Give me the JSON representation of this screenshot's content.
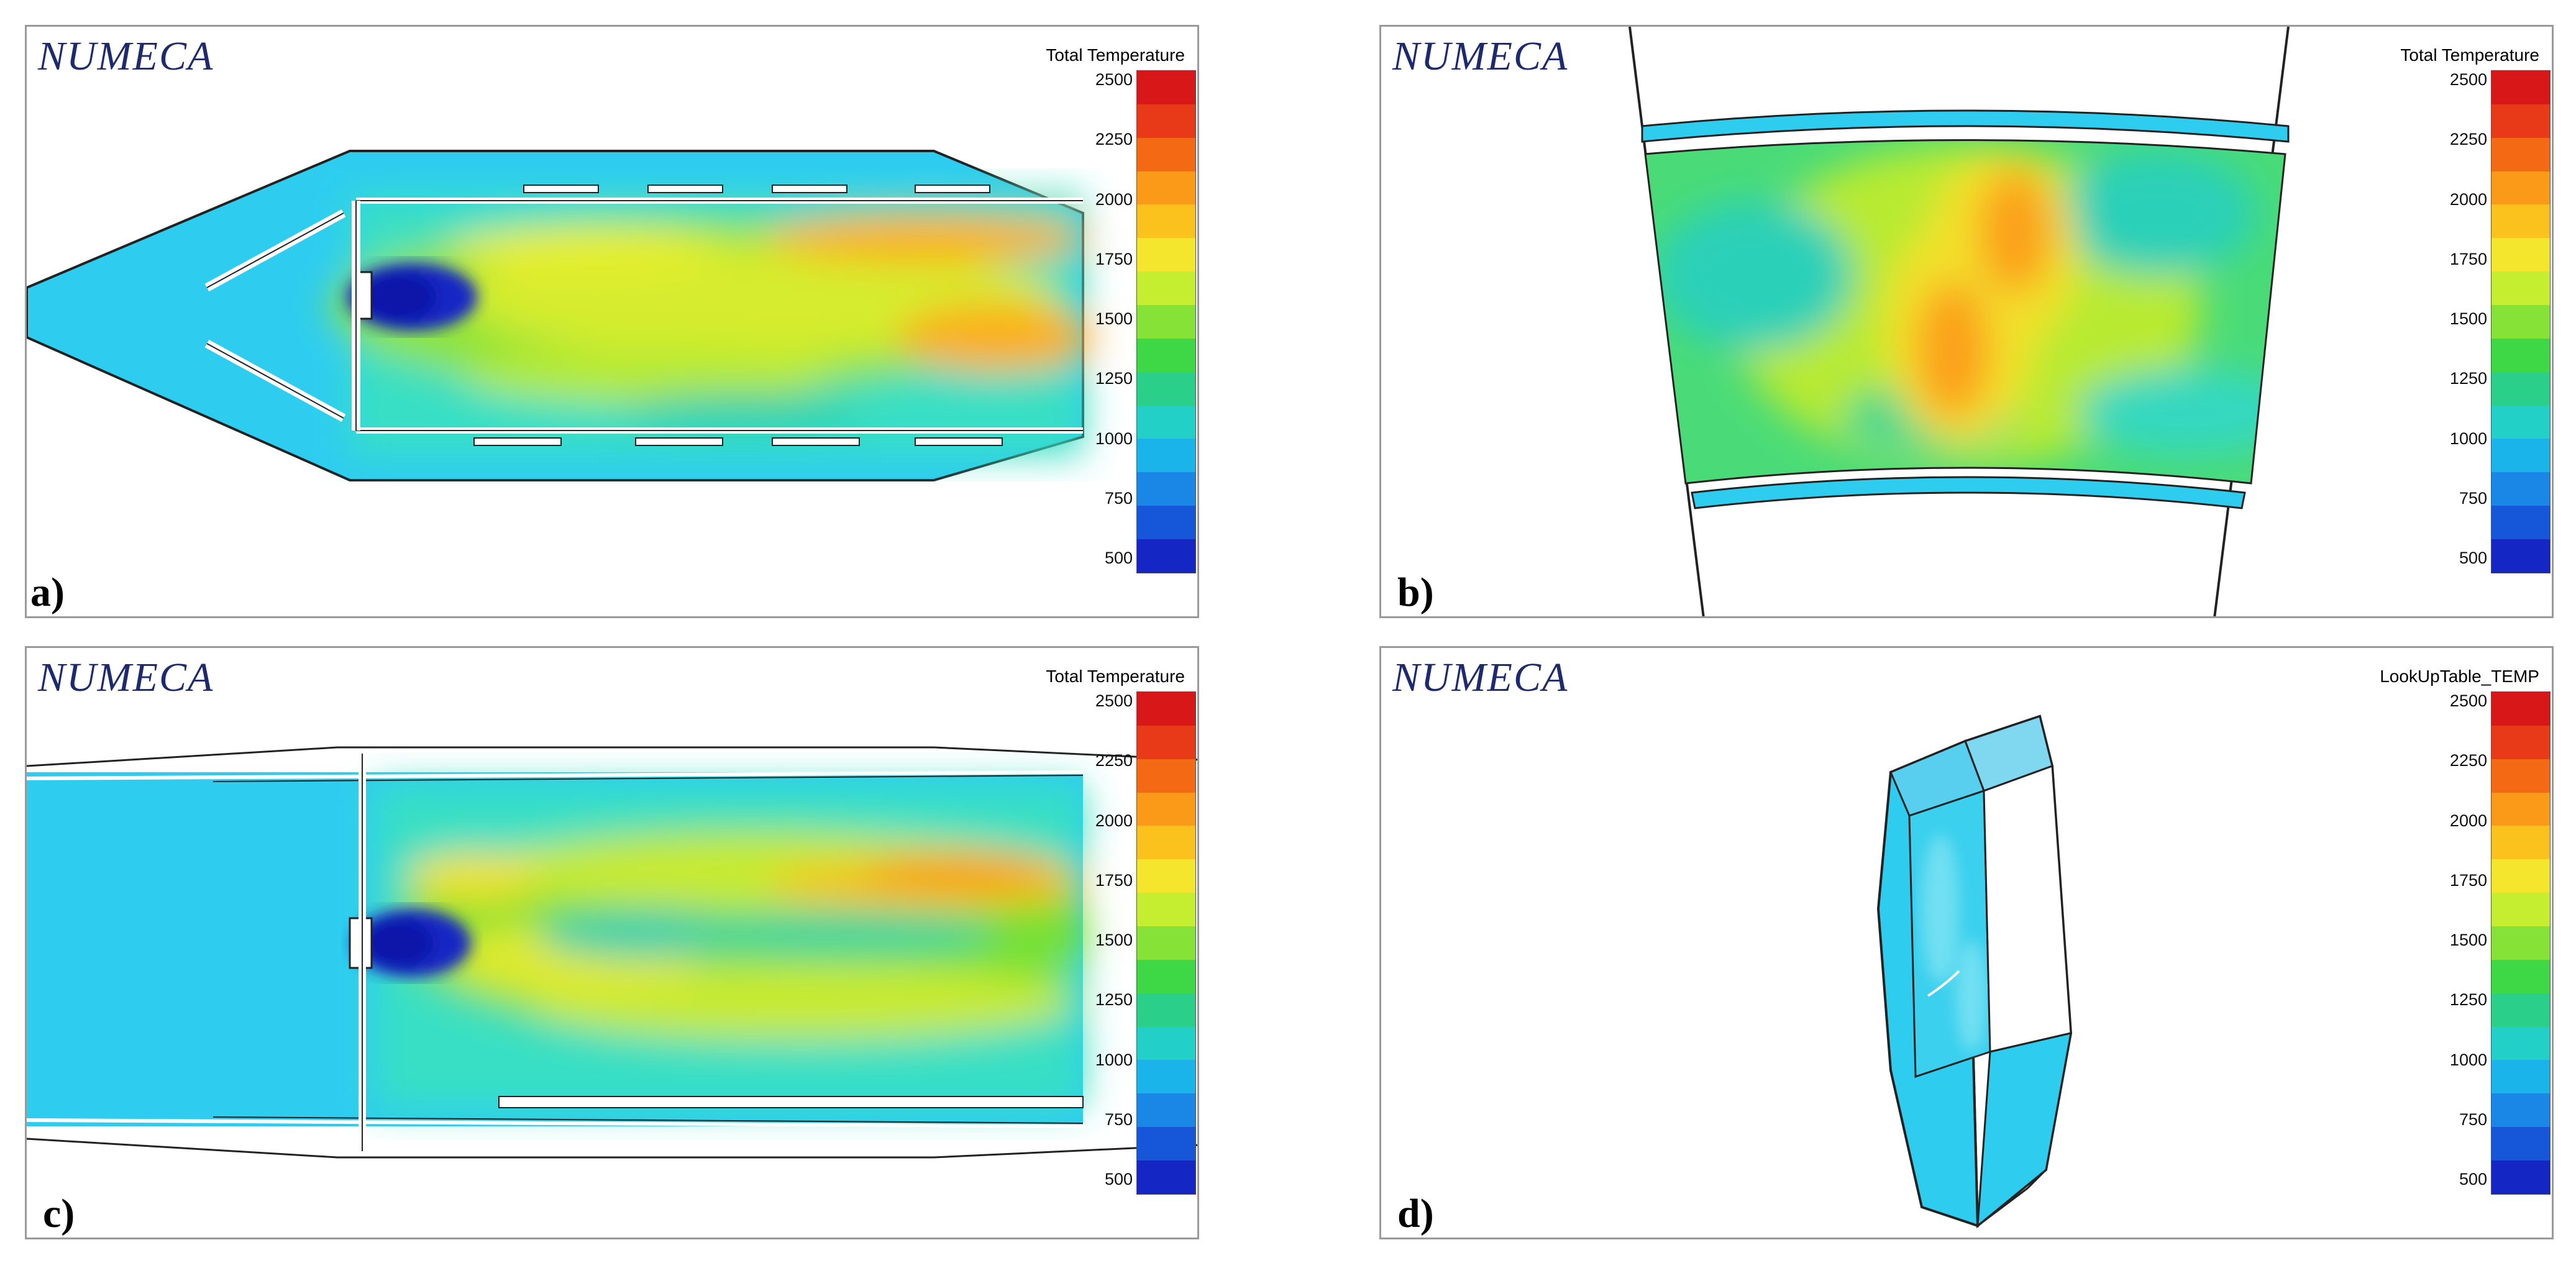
{
  "colormap": {
    "ticks": [
      "2500",
      "2250",
      "2000",
      "1750",
      "1500",
      "1250",
      "1000",
      "750",
      "500"
    ],
    "colors": [
      "#d81818",
      "#e83a18",
      "#f46a14",
      "#fb9a18",
      "#fbc21e",
      "#f3e62c",
      "#c6ee30",
      "#86e236",
      "#3ed846",
      "#2ad08a",
      "#22d0c8",
      "#1ab4ea",
      "#1a86e6",
      "#1656d8",
      "#1426c4"
    ]
  },
  "panels": [
    {
      "id": "a",
      "brand": "NUMECA",
      "scalar": "Total Temperature",
      "label": "a)"
    },
    {
      "id": "b",
      "brand": "NUMECA",
      "scalar": "Total Temperature",
      "label": "b)"
    },
    {
      "id": "c",
      "brand": "NUMECA",
      "scalar": "Total Temperature",
      "label": "c)"
    },
    {
      "id": "d",
      "brand": "NUMECA",
      "scalar": "LookUpTable_TEMP",
      "label": "d)"
    }
  ]
}
